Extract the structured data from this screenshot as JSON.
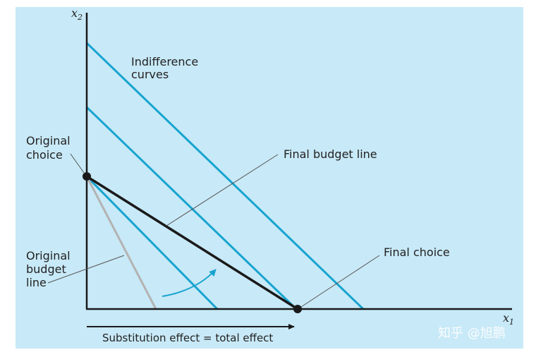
{
  "axes": {
    "x_label": "x",
    "x_sub": "1",
    "y_label": "x",
    "y_sub": "2"
  },
  "labels": {
    "indifference_1": "Indifference",
    "indifference_2": "curves",
    "original_choice_1": "Original",
    "original_choice_2": "choice",
    "final_budget": "Final budget line",
    "original_budget_1": "Original",
    "original_budget_2": "budget",
    "original_budget_3": "line",
    "final_choice": "Final choice",
    "effect": "Substitution effect = total effect"
  },
  "watermark": "知乎 @旭鹏",
  "colors": {
    "background": "#c8e9f7",
    "indifference": "#17a4cf",
    "final_budget": "#1a1a1a",
    "original_budget": "#b3b3b3",
    "axis": "#1a1a1a",
    "arrow": "#17a4cf"
  }
}
